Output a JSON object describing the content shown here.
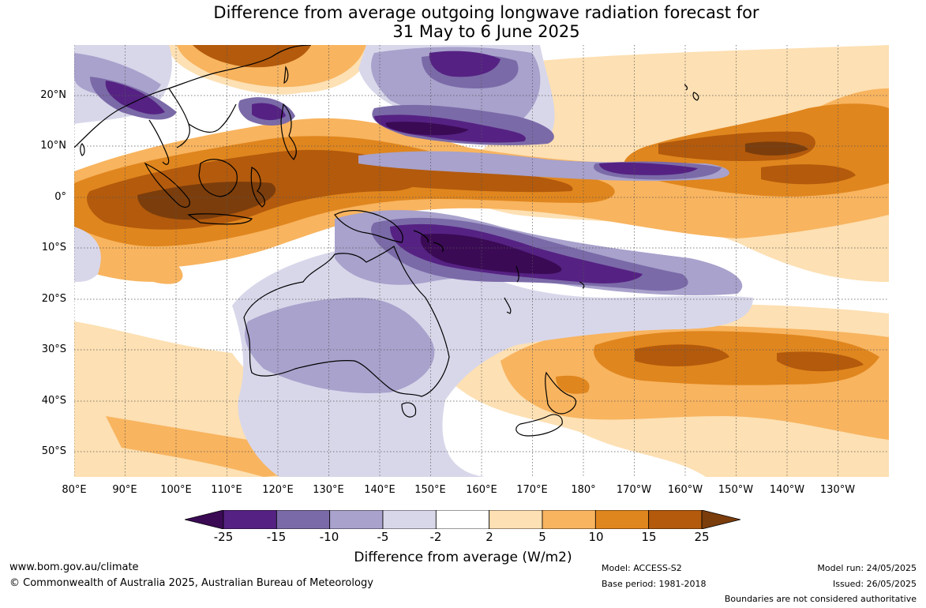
{
  "title": {
    "line1": "Difference from average outgoing longwave radiation forecast for",
    "line2": "31 May to 6 June 2025"
  },
  "map": {
    "lat_labels": [
      "20°N",
      "10°N",
      "0°",
      "10°S",
      "20°S",
      "30°S",
      "40°S",
      "50°S"
    ],
    "lon_labels": [
      "80°E",
      "90°E",
      "100°E",
      "110°E",
      "120°E",
      "130°E",
      "140°E",
      "150°E",
      "160°E",
      "170°E",
      "180°",
      "170°W",
      "160°W",
      "150°W",
      "140°W",
      "130°W"
    ],
    "land_outline_color": "#000000",
    "regions": [
      {
        "name": "Maritime Continent",
        "category": "15 to 25",
        "sign": "positive"
      },
      {
        "name": "Western Pacific 10N–20N",
        "category": "-15 to -25",
        "sign": "negative"
      },
      {
        "name": "Solomon Islands / Coral Sea",
        "category": "below -25",
        "sign": "negative"
      },
      {
        "name": "Central Pacific equator",
        "category": "5 to 15",
        "sign": "positive"
      },
      {
        "name": "Australia",
        "category": "-2 to -10",
        "sign": "negative"
      },
      {
        "name": "South Pacific 25S–40S",
        "category": "5 to 15",
        "sign": "positive"
      }
    ]
  },
  "colorbar": {
    "ticks": [
      "-25",
      "-15",
      "-10",
      "-5",
      "-2",
      "2",
      "5",
      "10",
      "15",
      "25"
    ],
    "colors": [
      "#3b0a55",
      "#552283",
      "#7b6aa8",
      "#a8a2cc",
      "#d8d7ea",
      "#ffffff",
      "#fde0b3",
      "#f8b45f",
      "#e0861e",
      "#b35a0c",
      "#7b3d0c"
    ],
    "title": "Difference from average (W/m2)"
  },
  "footer": {
    "url": "www.bom.gov.au/climate",
    "copyright": "© Commonwealth of Australia 2025, Australian Bureau of Meteorology",
    "model": "Model: ACCESS-S2",
    "base_period": "Base period: 1981-2018",
    "model_run": "Model run: 24/05/2025",
    "issued": "Issued: 26/05/2025",
    "disclaimer": "Boundaries are not considered authoritative"
  }
}
